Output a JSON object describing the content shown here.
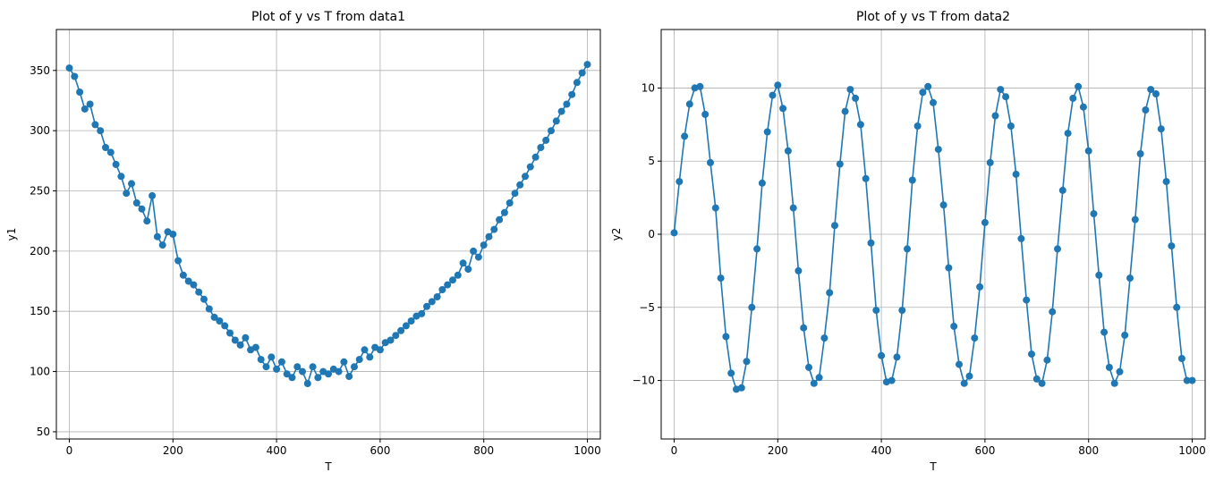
{
  "chart_data": [
    {
      "type": "line",
      "title": "Plot of y vs T from data1",
      "xlabel": "T",
      "ylabel": "y1",
      "xlim": [
        -25,
        1025
      ],
      "ylim": [
        44,
        384
      ],
      "xticks": [
        0,
        200,
        400,
        600,
        800,
        1000
      ],
      "yticks": [
        50,
        100,
        150,
        200,
        250,
        300,
        350
      ],
      "grid": true,
      "marker": "circle",
      "color": "#1f77b4",
      "series": [
        {
          "x": [
            0,
            10,
            20,
            30,
            40,
            50,
            60,
            70,
            80,
            90,
            100,
            110,
            120,
            130,
            140,
            150,
            160,
            170,
            180,
            190,
            200,
            210,
            220,
            230,
            240,
            250,
            260,
            270,
            280,
            290,
            300,
            310,
            320,
            330,
            340,
            350,
            360,
            370,
            380,
            390,
            400,
            410,
            420,
            430,
            440,
            450,
            460,
            470,
            480,
            490,
            500,
            510,
            520,
            530,
            540,
            550,
            560,
            570,
            580,
            590,
            600,
            610,
            620,
            630,
            640,
            650,
            660,
            670,
            680,
            690,
            700,
            710,
            720,
            730,
            740,
            750,
            760,
            770,
            780,
            790,
            800,
            810,
            820,
            830,
            840,
            850,
            860,
            870,
            880,
            890,
            900,
            910,
            920,
            930,
            940,
            950,
            960,
            970,
            980,
            990,
            1000
          ],
          "y": [
            352,
            345,
            332,
            318,
            322,
            305,
            300,
            286,
            282,
            272,
            262,
            248,
            256,
            240,
            235,
            225,
            246,
            212,
            205,
            216,
            214,
            192,
            180,
            175,
            172,
            166,
            160,
            152,
            145,
            142,
            138,
            132,
            126,
            122,
            128,
            118,
            120,
            110,
            104,
            112,
            102,
            108,
            98,
            95,
            104,
            100,
            90,
            104,
            95,
            100,
            98,
            102,
            100,
            108,
            96,
            104,
            110,
            118,
            112,
            120,
            118,
            124,
            126,
            130,
            134,
            138,
            142,
            146,
            148,
            154,
            158,
            162,
            168,
            172,
            176,
            180,
            190,
            185,
            200,
            195,
            205,
            212,
            218,
            226,
            232,
            240,
            248,
            255,
            262,
            270,
            278,
            286,
            292,
            300,
            308,
            316,
            322,
            330,
            340,
            348,
            355
          ]
        }
      ]
    },
    {
      "type": "line",
      "title": "Plot of y vs T from data2",
      "xlabel": "T",
      "ylabel": "y2",
      "xlim": [
        -25,
        1025
      ],
      "ylim": [
        -14,
        14
      ],
      "xticks": [
        0,
        200,
        400,
        600,
        800,
        1000
      ],
      "yticks": [
        -10,
        -5,
        0,
        5,
        10
      ],
      "grid": true,
      "marker": "circle",
      "color": "#1f77b4",
      "series": [
        {
          "x": [
            0,
            10,
            20,
            30,
            40,
            50,
            60,
            70,
            80,
            90,
            100,
            110,
            120,
            130,
            140,
            150,
            160,
            170,
            180,
            190,
            200,
            210,
            220,
            230,
            240,
            250,
            260,
            270,
            280,
            290,
            300,
            310,
            320,
            330,
            340,
            350,
            360,
            370,
            380,
            390,
            400,
            410,
            420,
            430,
            440,
            450,
            460,
            470,
            480,
            490,
            500,
            510,
            520,
            530,
            540,
            550,
            560,
            570,
            580,
            590,
            600,
            610,
            620,
            630,
            640,
            650,
            660,
            670,
            680,
            690,
            700,
            710,
            720,
            730,
            740,
            750,
            760,
            770,
            780,
            790,
            800,
            810,
            820,
            830,
            840,
            850,
            860,
            870,
            880,
            890,
            900,
            910,
            920,
            930,
            940,
            950,
            960,
            970,
            980,
            990,
            1000
          ],
          "y": [
            0.1,
            3.6,
            6.7,
            8.9,
            10.0,
            10.1,
            8.2,
            4.9,
            1.8,
            -3.0,
            -7.0,
            -9.5,
            -10.6,
            -10.5,
            -8.7,
            -5.0,
            -1.0,
            3.5,
            7.0,
            9.5,
            10.2,
            8.6,
            5.7,
            1.8,
            -2.5,
            -6.4,
            -9.1,
            -10.2,
            -9.8,
            -7.1,
            -4.0,
            0.6,
            4.8,
            8.4,
            9.9,
            9.3,
            7.5,
            3.8,
            -0.6,
            -5.2,
            -8.3,
            -10.1,
            -10.0,
            -8.4,
            -5.2,
            -1.0,
            3.7,
            7.4,
            9.7,
            10.1,
            9.0,
            5.8,
            2.0,
            -2.3,
            -6.3,
            -8.9,
            -10.2,
            -9.7,
            -7.1,
            -3.6,
            0.8,
            4.9,
            8.1,
            9.9,
            9.4,
            7.4,
            4.1,
            -0.3,
            -4.5,
            -8.2,
            -9.9,
            -10.2,
            -8.6,
            -5.3,
            -1.0,
            3.0,
            6.9,
            9.3,
            10.1,
            8.7,
            5.7,
            1.4,
            -2.8,
            -6.7,
            -9.1,
            -10.2,
            -9.4,
            -6.9,
            -3.0,
            1.0,
            5.5,
            8.5,
            9.9,
            9.6,
            7.2,
            3.6,
            -0.8,
            -5.0,
            -8.5,
            -10.0,
            -10.0
          ]
        }
      ]
    }
  ]
}
